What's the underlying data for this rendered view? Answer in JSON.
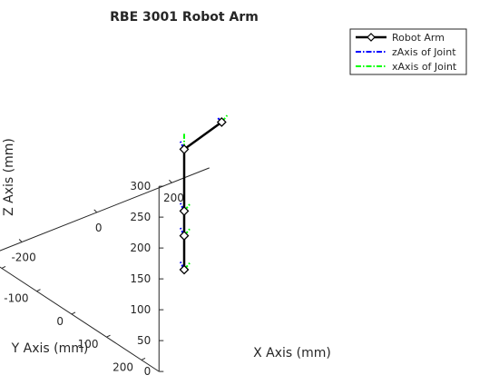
{
  "chart_data": {
    "type": "line",
    "projection": "3d",
    "title": "RBE 3001 Robot Arm",
    "xlabel": "X Axis (mm)",
    "ylabel": "Y Axis (mm)",
    "zlabel": "Z Axis (mm)",
    "xlim": [
      -300,
      300
    ],
    "ylim": [
      -250,
      250
    ],
    "zlim": [
      0,
      300
    ],
    "x_ticks": [
      -200,
      0,
      200
    ],
    "y_ticks": [
      -200,
      -100,
      0,
      100,
      200
    ],
    "z_ticks": [
      0,
      50,
      100,
      150,
      200,
      250,
      300
    ],
    "grid": false,
    "legend_position": "top-right",
    "legend": [
      {
        "label": "Robot Arm",
        "color": "#000000",
        "style": "solid",
        "marker": "diamond"
      },
      {
        "label": "zAxis of Joint",
        "color": "#0000ff",
        "style": "dash-dot",
        "marker": ""
      },
      {
        "label": "xAxis of Joint",
        "color": "#00ff00",
        "style": "dash-dot",
        "marker": ""
      }
    ],
    "series": [
      {
        "name": "Robot Arm",
        "x": [
          0,
          0,
          0,
          0,
          100
        ],
        "y": [
          0,
          0,
          0,
          0,
          0
        ],
        "z": [
          0,
          55,
          95,
          195,
          215
        ]
      }
    ],
    "joint_frames": [
      {
        "origin": [
          0,
          0,
          0
        ],
        "z_dir": [
          -0.4,
          0.0,
          0.6
        ],
        "x_dir": [
          0.7,
          0.0,
          0.35
        ]
      },
      {
        "origin": [
          0,
          0,
          55
        ],
        "z_dir": [
          -0.4,
          0.0,
          0.6
        ],
        "x_dir": [
          0.7,
          0.0,
          0.35
        ]
      },
      {
        "origin": [
          0,
          0,
          95
        ],
        "z_dir": [
          -0.4,
          0.0,
          0.6
        ],
        "x_dir": [
          0.7,
          0.0,
          0.35
        ]
      },
      {
        "origin": [
          0,
          0,
          195
        ],
        "z_dir": [
          -0.4,
          0.0,
          0.6
        ],
        "x_dir": [
          0.0,
          0.0,
          1.0
        ]
      },
      {
        "origin": [
          100,
          0,
          215
        ],
        "z_dir": [
          -0.5,
          0.0,
          0.45
        ],
        "x_dir": [
          0.7,
          0.0,
          0.35
        ]
      }
    ]
  }
}
